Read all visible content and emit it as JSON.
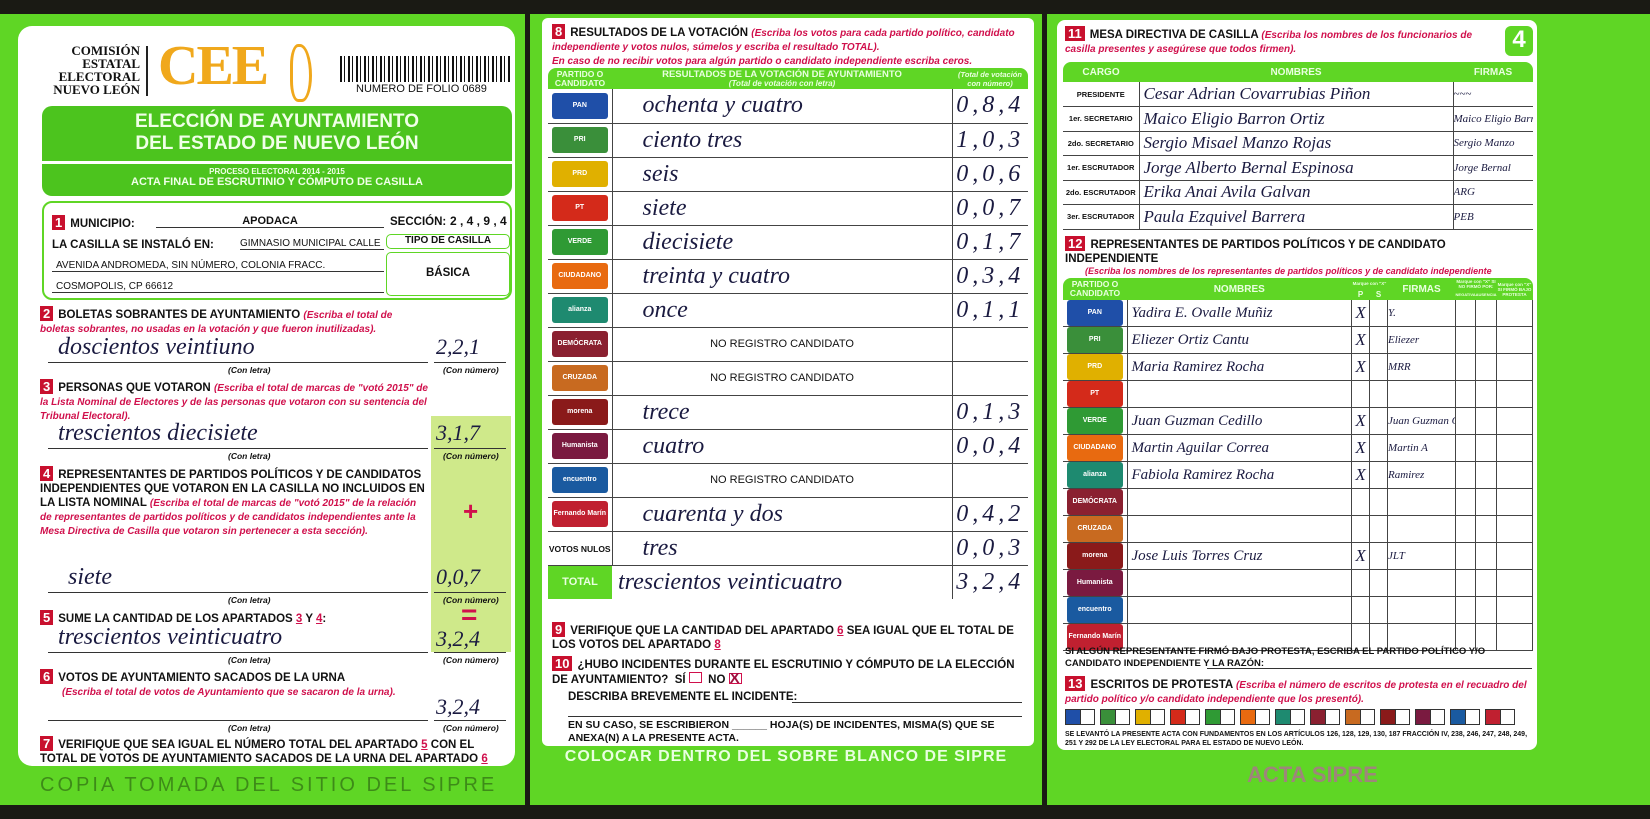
{
  "colors": {
    "green": "#5fd625",
    "red": "#c8102e",
    "pink": "#d0104c",
    "cee_orange": "#f0a81c"
  },
  "header": {
    "org_lines": [
      "COMISIÓN",
      "ESTATAL",
      "ELECTORAL",
      "NUEVO LEÓN"
    ],
    "logo": "CEE",
    "folio": "NUMERO DE FOLIO 0689",
    "title1": "ELECCIÓN DE AYUNTAMIENTO",
    "title2": "DEL ESTADO DE NUEVO LEÓN",
    "process": "PROCESO ELECTORAL 2014 - 2015",
    "acta": "ACTA FINAL DE ESCRUTINIO Y CÓMPUTO DE CASILLA"
  },
  "s1": {
    "n": "1",
    "municipio_label": "MUNICIPIO:",
    "municipio": "APODACA",
    "seccion_label": "SECCIÓN:",
    "seccion": "2 , 4 , 9 , 4",
    "instalo_label": "LA CASILLA SE INSTALÓ EN:",
    "addr1": "GIMNASIO MUNICIPAL CALLE",
    "addr2": "AVENIDA ANDROMEDA, SIN NÚMERO, COLONIA FRACC.",
    "addr3": "COSMOPOLIS, CP 66612",
    "tipo_label": "TIPO DE CASILLA",
    "tipo": "BÁSICA"
  },
  "captions": {
    "letra": "(Con letra)",
    "numero": "(Con número)"
  },
  "s2": {
    "n": "2",
    "title": "BOLETAS SOBRANTES DE AYUNTAMIENTO",
    "inst": "(Escriba el total de boletas sobrantes, no usadas en la votación y que fueron inutilizadas).",
    "letra": "doscientos veintiuno",
    "numero": "2,2,1"
  },
  "s3": {
    "n": "3",
    "title": "PERSONAS QUE VOTARON",
    "inst": "(Escriba el total de marcas de \"votó 2015\" de la Lista Nominal de Electores y de las personas que votaron con su sentencia del Tribunal Electoral).",
    "letra": "trescientos diecisiete",
    "numero": "3,1,7"
  },
  "s4": {
    "n": "4",
    "title": "REPRESENTANTES DE PARTIDOS POLÍTICOS Y DE CANDIDATOS INDEPENDIENTES QUE VOTARON EN LA CASILLA NO INCLUIDOS EN LA LISTA NOMINAL",
    "inst": "(Escriba el total de marcas de \"votó 2015\" de la relación de representantes de partidos políticos y de candidatos independientes ante la Mesa Directiva de Casilla que votaron sin pertenecer a esta sección).",
    "letra": "siete",
    "numero": "0,0,7",
    "plus": "+"
  },
  "s5": {
    "n": "5",
    "title": "SUME LA CANTIDAD DE LOS APARTADOS",
    "a": "3",
    "y": "Y",
    "b": "4",
    "letra": "trescientos veinticuatro",
    "numero": "3,2,4",
    "eq": "="
  },
  "s6": {
    "n": "6",
    "title": "VOTOS DE AYUNTAMIENTO SACADOS DE LA URNA",
    "inst": "(Escriba el total de votos de Ayuntamiento que se sacaron de la urna).",
    "numero": "3,2,4"
  },
  "s7": {
    "n": "7",
    "t1": "VERIFIQUE QUE SEA IGUAL EL NÚMERO TOTAL DEL APARTADO",
    "a": "5",
    "t2": "CON EL TOTAL DE VOTOS DE AYUNTAMIENTO SACADOS DE LA URNA DEL APARTADO",
    "b": "6"
  },
  "s8": {
    "n": "8",
    "title": "RESULTADOS DE LA VOTACIÓN",
    "inst1": "(Escriba los votos para cada partido político, candidato independiente y votos nulos, súmelos y escriba el resultado TOTAL).",
    "inst2": "En caso de no recibir votos para algún partido o candidato independiente escriba ceros.",
    "col1": "PARTIDO O CANDIDATO",
    "col2": "RESULTADOS DE LA VOTACIÓN DE AYUNTAMIENTO",
    "col2sub": "(Total de votación con letra)",
    "col3": "(Total de votación con número)",
    "rows": [
      {
        "party": "PAN",
        "color": "#1f4fa8",
        "letra": "ochenta y cuatro",
        "numero": "0,8,4"
      },
      {
        "party": "PRI",
        "color": "#3a8f3a",
        "letra": "ciento tres",
        "numero": "1,0,3"
      },
      {
        "party": "PRD",
        "color": "#e0b000",
        "letra": "seis",
        "numero": "0,0,6"
      },
      {
        "party": "PT",
        "color": "#d42a1a",
        "letra": "siete",
        "numero": "0,0,7"
      },
      {
        "party": "VERDE",
        "color": "#2f9a34",
        "letra": "diecisiete",
        "numero": "0,1,7"
      },
      {
        "party": "CIUDADANO",
        "color": "#e86a10",
        "letra": "treinta y cuatro",
        "numero": "0,3,4"
      },
      {
        "party": "alianza",
        "color": "#1e8a70",
        "letra": "once",
        "numero": "0,1,1"
      },
      {
        "party": "DEMÓCRATA",
        "color": "#8a2030",
        "letra": "NO REGISTRO CANDIDATO",
        "numero": ""
      },
      {
        "party": "CRUZADA",
        "color": "#c86a20",
        "letra": "NO REGISTRO CANDIDATO",
        "numero": ""
      },
      {
        "party": "morena",
        "color": "#8a1a1a",
        "letra": "trece",
        "numero": "0,1,3"
      },
      {
        "party": "Humanista",
        "color": "#7a1a40",
        "letra": "cuatro",
        "numero": "0,0,4"
      },
      {
        "party": "encuentro",
        "color": "#1a5aa0",
        "letra": "NO REGISTRO CANDIDATO",
        "numero": ""
      },
      {
        "party": "Fernando Marín",
        "color": "#c02030",
        "letra": "cuarenta y dos",
        "numero": "0,4,2"
      },
      {
        "party": "VOTOS NULOS",
        "color": "",
        "letra": "tres",
        "numero": "0,0,3"
      }
    ],
    "total_label": "TOTAL",
    "total_letra": "trescientos veinticuatro",
    "total_numero": "3,2,4"
  },
  "s9": {
    "n": "9",
    "t1": "VERIFIQUE QUE LA CANTIDAD DEL APARTADO",
    "a": "6",
    "t2": "SEA IGUAL QUE EL TOTAL DE LOS VOTOS DEL APARTADO",
    "b": "8"
  },
  "s10": {
    "n": "10",
    "t1": "¿HUBO INCIDENTES DURANTE EL ESCRUTINIO Y CÓMPUTO DE LA ELECCIÓN DE AYUNTAMIENTO?",
    "si": "SÍ",
    "no": "NO",
    "no_mark": "X",
    "describa": "DESCRIBA BREVEMENTE EL INCIDENTE:",
    "hojas1": "EN SU CASO, SE ESCRIBIERON",
    "hojas2": "HOJA(S) DE INCIDENTES, MISMA(S) QUE SE ANEXA(N) A LA PRESENTE ACTA."
  },
  "footer_mid": "COLOCAR DENTRO DEL SOBRE BLANCO DE SIPRE",
  "s11": {
    "n": "11",
    "title": "MESA DIRECTIVA DE CASILLA",
    "inst": "(Escriba los nombres de los funcionarios de casilla presentes y asegúrese que todos firmen).",
    "badge": "4",
    "cols": [
      "CARGO",
      "NOMBRES",
      "FIRMAS"
    ],
    "rows": [
      {
        "cargo": "PRESIDENTE",
        "nombre": "Cesar Adrian Covarrubias Piñon",
        "firma": "~~~"
      },
      {
        "cargo": "1er. SECRETARIO",
        "nombre": "Maico Eligio Barron Ortiz",
        "firma": "Maico Eligio Barr"
      },
      {
        "cargo": "2do. SECRETARIO",
        "nombre": "Sergio Misael Manzo Rojas",
        "firma": "Sergio Manzo"
      },
      {
        "cargo": "1er. ESCRUTADOR",
        "nombre": "Jorge Alberto Bernal Espinosa",
        "firma": "Jorge Bernal"
      },
      {
        "cargo": "2do. ESCRUTADOR",
        "nombre": "Erika Anai Avila Galvan",
        "firma": "ARG"
      },
      {
        "cargo": "3er. ESCRUTADOR",
        "nombre": "Paula Ezquivel Barrera",
        "firma": "PEB"
      }
    ]
  },
  "s12": {
    "n": "12",
    "title": "REPRESENTANTES DE PARTIDOS POLÍTICOS Y DE CANDIDATO INDEPENDIENTE",
    "inst": "(Escriba los nombres de los representantes de partidos políticos y de candidato independiente presentes, marque con una \"X\" si es propietario (P) o suplente (S) y asegúrese que todos firmen).",
    "cols": {
      "partido": "PARTIDO O CANDIDATO",
      "nombres": "NOMBRES",
      "marque": "Marque con \"X\"",
      "p": "P",
      "s": "S",
      "firmas": "FIRMAS",
      "nofirmo": "Marque con \"X\" SI NO FIRMÓ POR:",
      "negativa": "NEGATIVA",
      "ausencia": "AUSENCIA",
      "protesta": "Marque con \"X\" SI FIRMÓ BAJO PROTESTA"
    },
    "rows": [
      {
        "party": "PAN",
        "nombre": "Yadira E. Ovalle Muñiz",
        "p": "X",
        "s": "",
        "firma": "Y."
      },
      {
        "party": "PRI",
        "nombre": "Eliezer Ortiz Cantu",
        "p": "X",
        "s": "",
        "firma": "Eliezer"
      },
      {
        "party": "PRD",
        "nombre": "Maria Ramirez Rocha",
        "p": "X",
        "s": "",
        "firma": "MRR"
      },
      {
        "party": "PT",
        "nombre": "",
        "p": "",
        "s": "",
        "firma": ""
      },
      {
        "party": "VERDE",
        "nombre": "Juan Guzman Cedillo",
        "p": "X",
        "s": "",
        "firma": "Juan Guzman C"
      },
      {
        "party": "CIUDADANO",
        "nombre": "Martin Aguilar Correa",
        "p": "X",
        "s": "",
        "firma": "Martin A"
      },
      {
        "party": "alianza",
        "nombre": "Fabiola Ramirez Rocha",
        "p": "X",
        "s": "",
        "firma": "Ramirez"
      },
      {
        "party": "DEMÓCRATA",
        "nombre": "",
        "p": "",
        "s": "",
        "firma": ""
      },
      {
        "party": "CRUZADA",
        "nombre": "",
        "p": "",
        "s": "",
        "firma": ""
      },
      {
        "party": "morena",
        "nombre": "Jose Luis Torres Cruz",
        "p": "X",
        "s": "",
        "firma": "JLT"
      },
      {
        "party": "Humanista",
        "nombre": "",
        "p": "",
        "s": "",
        "firma": ""
      },
      {
        "party": "encuentro",
        "nombre": "",
        "p": "",
        "s": "",
        "firma": ""
      },
      {
        "party": "Fernando Marín",
        "nombre": "",
        "p": "",
        "s": "",
        "firma": ""
      }
    ],
    "protesta_text": "SI ALGÚN REPRESENTANTE FIRMÓ BAJO PROTESTA, ESCRIBA EL PARTIDO POLÍTICO Y/O CANDIDATO INDEPENDIENTE Y LA RAZÓN:"
  },
  "s13": {
    "n": "13",
    "title": "ESCRITOS DE PROTESTA",
    "inst": "(Escriba el número de escritos de protesta en el recuadro del partido político y/o candidato independiente que los presentó).",
    "legal": "SE LEVANTÓ LA PRESENTE ACTA CON FUNDAMENTOS EN LOS ARTÍCULOS 126, 128, 129, 130, 187 FRACCIÓN IV, 238, 246, 247, 248, 249, 251 Y 292 DE LA LEY ELECTORAL PARA EL ESTADO DE NUEVO LEÓN."
  },
  "watermark": {
    "main": "COPIA TOMADA DEL SITIO DEL SIPRE",
    "stamp": "ACTA SIPRE"
  }
}
